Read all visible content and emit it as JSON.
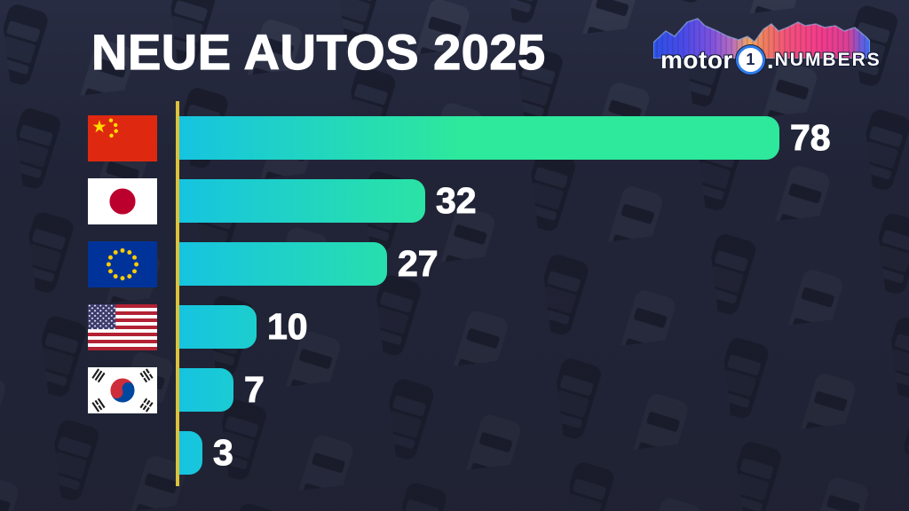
{
  "title": "NEUE AUTOS 2025",
  "logo": {
    "brand_left": "motor",
    "brand_number": "1",
    "brand_dot": ".",
    "brand_right": "NUMBERS"
  },
  "chart_data": {
    "type": "bar",
    "orientation": "horizontal",
    "title": "NEUE AUTOS 2025",
    "categories": [
      "China",
      "Japan",
      "European Union",
      "United States",
      "South Korea",
      ""
    ],
    "category_icons": [
      "flag-china",
      "flag-japan",
      "flag-eu",
      "flag-usa",
      "flag-south-korea",
      "none"
    ],
    "values": [
      78,
      32,
      27,
      10,
      7,
      3
    ],
    "max_value": 78,
    "xlim": [
      0,
      78
    ],
    "grid": false,
    "legend": "none",
    "bar_gradient_start": "#16C4E0",
    "bar_gradient_end": "#2EE89C",
    "axis_line_color": "#DCC23C",
    "value_label_color": "#FFFFFF",
    "background_color": "#2A2E45"
  }
}
